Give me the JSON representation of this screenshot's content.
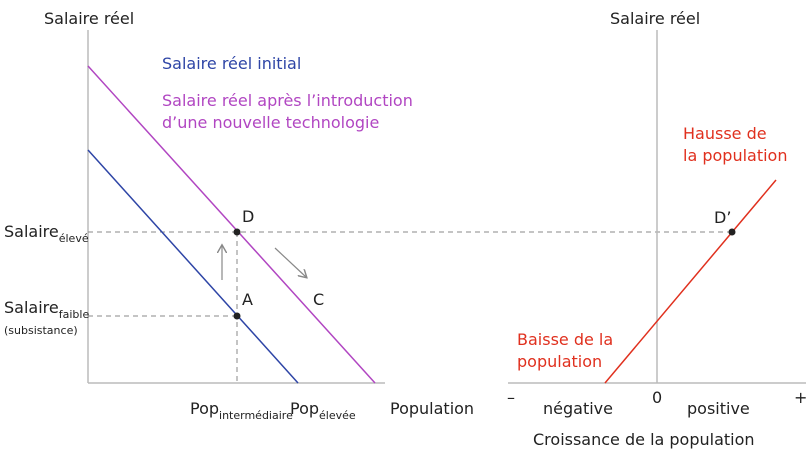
{
  "left_panel": {
    "y_axis_title": "Salaire réel",
    "legend": {
      "initial": "Salaire réel initial",
      "after_line1": "Salaire réel après l’introduction",
      "after_line2": "d’une nouvelle technologie"
    },
    "y_labels": {
      "high": {
        "base": "Salaire",
        "sub": "élevé"
      },
      "low": {
        "base": "Salaire",
        "sub": "faible",
        "note": "(subsistance)"
      }
    },
    "x_labels": {
      "mid": {
        "base": "Pop",
        "sub": "intermédiaire"
      },
      "high": {
        "base": "Pop",
        "sub": "élevée"
      },
      "axis": "Population"
    },
    "points": {
      "d": "D",
      "a": "A",
      "c": "C"
    }
  },
  "right_panel": {
    "y_axis_title": "Salaire réel",
    "x_axis_title": "Croissance de la population",
    "x_marks": {
      "minus": "–",
      "zero": "0",
      "plus": "+",
      "negative": "négative",
      "positive": "positive"
    },
    "annotations": {
      "rise_line1": "Hausse de",
      "rise_line2": "la population",
      "fall_line1": "Baisse de la",
      "fall_line2": "population"
    },
    "point": "D’"
  }
}
